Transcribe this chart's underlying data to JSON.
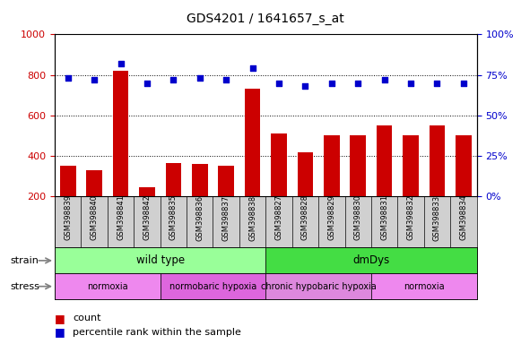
{
  "title": "GDS4201 / 1641657_s_at",
  "samples": [
    "GSM398839",
    "GSM398840",
    "GSM398841",
    "GSM398842",
    "GSM398835",
    "GSM398836",
    "GSM398837",
    "GSM398838",
    "GSM398827",
    "GSM398828",
    "GSM398829",
    "GSM398830",
    "GSM398831",
    "GSM398832",
    "GSM398833",
    "GSM398834"
  ],
  "counts": [
    350,
    330,
    820,
    245,
    365,
    360,
    350,
    730,
    510,
    415,
    500,
    500,
    550,
    500,
    550,
    500
  ],
  "percentiles": [
    73,
    72,
    82,
    70,
    72,
    73,
    72,
    79,
    70,
    68,
    70,
    70,
    72,
    70,
    70,
    70
  ],
  "bar_color": "#cc0000",
  "dot_color": "#0000cc",
  "ylim_left": [
    200,
    1000
  ],
  "ylim_right": [
    0,
    100
  ],
  "yticks_left": [
    200,
    400,
    600,
    800,
    1000
  ],
  "yticks_right": [
    0,
    25,
    50,
    75,
    100
  ],
  "strain_labels": [
    {
      "text": "wild type",
      "start": 0,
      "end": 8,
      "color": "#99ff99"
    },
    {
      "text": "dmDys",
      "start": 8,
      "end": 16,
      "color": "#44dd44"
    }
  ],
  "stress_labels": [
    {
      "text": "normoxia",
      "start": 0,
      "end": 4,
      "color": "#ee88ee"
    },
    {
      "text": "normobaric hypoxia",
      "start": 4,
      "end": 8,
      "color": "#dd66dd"
    },
    {
      "text": "chronic hypobaric hypoxia",
      "start": 8,
      "end": 12,
      "color": "#dd88dd"
    },
    {
      "text": "normoxia",
      "start": 12,
      "end": 16,
      "color": "#ee88ee"
    }
  ],
  "xtick_bg": "#d0d0d0",
  "legend_count_color": "#cc0000",
  "legend_dot_color": "#0000cc",
  "tick_color_left": "#cc0000",
  "tick_color_right": "#0000cc"
}
